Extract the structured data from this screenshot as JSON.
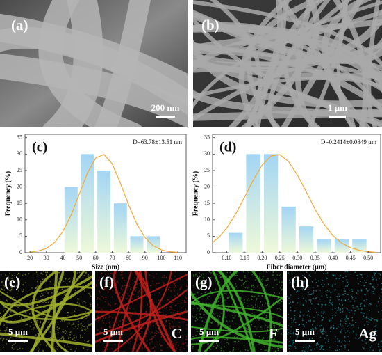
{
  "images": [
    {
      "label": "(a)",
      "scale_bar": "200 nm"
    },
    {
      "label": "(b)",
      "scale_bar": "1 μm"
    }
  ],
  "chart_data": [
    {
      "type": "histogram",
      "panel_label": "(c)",
      "annotation": "D=63.78±13.51 nm",
      "xlabel": "Size (nm)",
      "ylabel": "Frequency (%)",
      "bins": [
        40,
        50,
        60,
        70,
        80,
        90,
        100
      ],
      "values": [
        20,
        30,
        25,
        15,
        5,
        5
      ],
      "gradient": [
        "#a3d5f5",
        "#eef9d8"
      ],
      "xlim": [
        17,
        115
      ],
      "ylim": [
        0,
        36
      ],
      "xticks": [
        20,
        30,
        40,
        50,
        60,
        70,
        80,
        90,
        100,
        110
      ],
      "yticks": [
        0,
        5,
        10,
        15,
        20,
        25,
        30,
        35
      ],
      "fit": {
        "color": "#f2a93b",
        "x": [
          20,
          25,
          30,
          35,
          40,
          45,
          50,
          55,
          60,
          65,
          70,
          75,
          80,
          85,
          90,
          95,
          100,
          105,
          110
        ],
        "values": [
          0.16,
          0.5,
          1.3,
          3.1,
          6.4,
          11.4,
          17.8,
          24.3,
          28.8,
          29.9,
          27.0,
          21.2,
          14.6,
          8.7,
          4.6,
          2.1,
          0.8,
          0.3,
          0.1
        ]
      }
    },
    {
      "type": "histogram",
      "panel_label": "(d)",
      "annotation": "D=0.2414±0.0849 μm",
      "xlabel": "Fiber diameter (μm)",
      "ylabel": "Frequency (%)",
      "bins": [
        0.1,
        0.15,
        0.2,
        0.25,
        0.3,
        0.35,
        0.4,
        0.45,
        0.5
      ],
      "values": [
        6,
        30,
        30,
        14,
        8,
        4,
        4,
        4
      ],
      "gradient": [
        "#a3d5f5",
        "#eef9d8"
      ],
      "xlim": [
        0.06,
        0.535
      ],
      "ylim": [
        0,
        36
      ],
      "xticks": [
        {
          "value": 0.1,
          "label": "0.10"
        },
        {
          "value": 0.15,
          "label": "0.15"
        },
        {
          "value": 0.2,
          "label": "0.20"
        },
        {
          "value": 0.25,
          "label": "0.25"
        },
        {
          "value": 0.3,
          "label": "0.30"
        },
        {
          "value": 0.35,
          "label": "0.35"
        },
        {
          "value": 0.4,
          "label": "0.40"
        },
        {
          "value": 0.45,
          "label": "0.45"
        },
        {
          "value": 0.5,
          "label": "0.50"
        }
      ],
      "yticks": [
        0,
        5,
        10,
        15,
        20,
        25,
        30,
        35
      ],
      "fit": {
        "color": "#f2a93b",
        "x": [
          0.06,
          0.08,
          0.1,
          0.125,
          0.15,
          0.175,
          0.2,
          0.225,
          0.25,
          0.275,
          0.3,
          0.325,
          0.35,
          0.375,
          0.4,
          0.425,
          0.45,
          0.475,
          0.5,
          0.52
        ],
        "values": [
          3.1,
          4.9,
          7.5,
          11.7,
          16.8,
          22.1,
          26.6,
          29.4,
          29.85,
          27.7,
          23.6,
          18.5,
          13.2,
          8.7,
          5.2,
          2.9,
          1.5,
          0.7,
          0.3,
          0.1
        ]
      }
    }
  ],
  "maps": [
    {
      "label": "(e)",
      "scale_bar": "5 μm"
    },
    {
      "label": "(f)",
      "scale_bar": "5 μm",
      "element": "C"
    },
    {
      "label": "(g)",
      "scale_bar": "5 μm",
      "element": "F"
    },
    {
      "label": "(h)",
      "scale_bar": "5 μm",
      "element": "Ag"
    }
  ]
}
